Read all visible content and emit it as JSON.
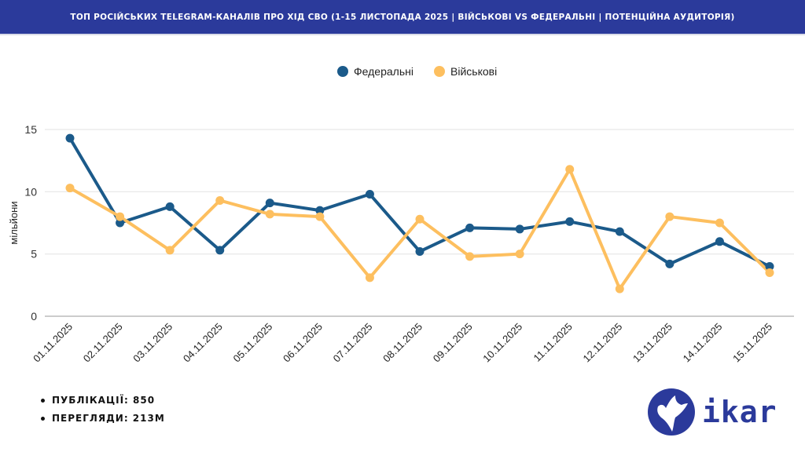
{
  "header": {
    "title": "ТОП РОСІЙСЬКИХ TELEGRAM-КАНАЛІВ ПРО ХІД СВО (1-15 ЛИСТОПАДА 2025 | ВІЙСЬКОВІ VS ФЕДЕРАЛЬНІ | ПОТЕНЦІЙНА АУДИТОРІЯ)"
  },
  "stats": {
    "publications": "ПУБЛІКАЦІЇ:  850",
    "views": "ПЕРЕГЛЯДИ: 213М"
  },
  "logo": {
    "text": "ikar"
  },
  "chart_data": {
    "type": "line",
    "title": "",
    "xlabel": "",
    "ylabel": "мільйони",
    "ylim": [
      0,
      15
    ],
    "yticks": [
      0,
      5,
      10,
      15
    ],
    "grid": true,
    "legend_position": "top-center",
    "categories": [
      "01.11.2025",
      "02.11.2025",
      "03.11.2025",
      "04.11.2025",
      "05.11.2025",
      "06.11.2025",
      "07.11.2025",
      "08.11.2025",
      "09.11.2025",
      "10.11.2025",
      "11.11.2025",
      "12.11.2025",
      "13.11.2025",
      "14.11.2025",
      "15.11.2025"
    ],
    "series": [
      {
        "name": "Федеральні",
        "color": "#1b5a8a",
        "values": [
          14.3,
          7.5,
          8.8,
          5.3,
          9.1,
          8.5,
          9.8,
          5.2,
          7.1,
          7.0,
          7.6,
          6.8,
          4.2,
          6.0,
          4.0
        ]
      },
      {
        "name": "Військові",
        "color": "#fdbf5f",
        "values": [
          10.3,
          8.0,
          5.3,
          9.3,
          8.2,
          8.0,
          3.1,
          7.8,
          4.8,
          5.0,
          11.8,
          2.2,
          8.0,
          7.5,
          3.5
        ]
      }
    ]
  }
}
